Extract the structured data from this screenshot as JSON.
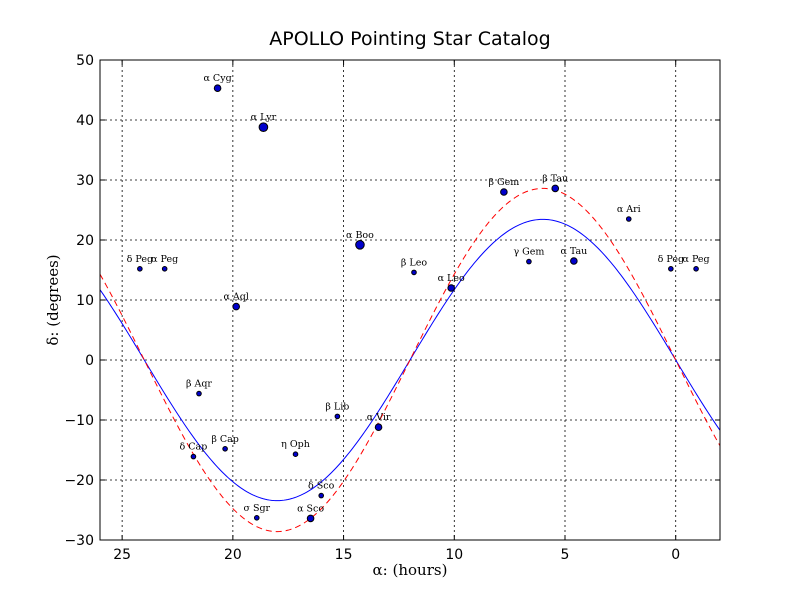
{
  "chart_data": {
    "type": "scatter",
    "title": "APOLLO Pointing Star Catalog",
    "xlabel": "α: (hours)",
    "ylabel": "δ: (degrees)",
    "xlim": [
      26,
      -2
    ],
    "ylim": [
      -30,
      50
    ],
    "x_ticks": [
      25,
      20,
      15,
      10,
      5,
      0
    ],
    "y_ticks": [
      50,
      40,
      30,
      20,
      10,
      0,
      -10,
      -20,
      -30
    ],
    "grid": true,
    "stars": [
      {
        "label": "α Cyg",
        "ra": 20.69,
        "dec": 45.3,
        "size": "medium"
      },
      {
        "label": "α Lyr",
        "ra": 18.62,
        "dec": 38.8,
        "size": "large"
      },
      {
        "label": "β Gem",
        "ra": 7.76,
        "dec": 28.0,
        "size": "medium"
      },
      {
        "label": "β Tau",
        "ra": 5.44,
        "dec": 28.6,
        "size": "medium"
      },
      {
        "label": "α Ari",
        "ra": 2.12,
        "dec": 23.5,
        "size": "small"
      },
      {
        "label": "α Boo",
        "ra": 14.26,
        "dec": 19.2,
        "size": "large"
      },
      {
        "label": "δ Peg",
        "ra": 24.2,
        "dec": 15.2,
        "size": "small"
      },
      {
        "label": "α Peg",
        "ra": 23.08,
        "dec": 15.2,
        "size": "small"
      },
      {
        "label": "β Leo",
        "ra": 11.82,
        "dec": 14.6,
        "size": "small"
      },
      {
        "label": "γ Gem",
        "ra": 6.63,
        "dec": 16.4,
        "size": "small"
      },
      {
        "label": "α Tau",
        "ra": 4.6,
        "dec": 16.5,
        "size": "medium"
      },
      {
        "label": "δ Peg",
        "ra": 0.22,
        "dec": 15.2,
        "size": "small"
      },
      {
        "label": "α Peg",
        "ra": -0.92,
        "dec": 15.2,
        "size": "small"
      },
      {
        "label": "α Leo",
        "ra": 10.14,
        "dec": 12.0,
        "size": "medium"
      },
      {
        "label": "α Aql",
        "ra": 19.85,
        "dec": 8.9,
        "size": "medium"
      },
      {
        "label": "β Aqr",
        "ra": 21.53,
        "dec": -5.6,
        "size": "small"
      },
      {
        "label": "β Lib",
        "ra": 15.28,
        "dec": -9.4,
        "size": "small"
      },
      {
        "label": "α Vir",
        "ra": 13.42,
        "dec": -11.2,
        "size": "medium"
      },
      {
        "label": "β Cap",
        "ra": 20.35,
        "dec": -14.8,
        "size": "small"
      },
      {
        "label": "δ Cap",
        "ra": 21.78,
        "dec": -16.1,
        "size": "small"
      },
      {
        "label": "η Oph",
        "ra": 17.17,
        "dec": -15.7,
        "size": "small"
      },
      {
        "label": "δ Sco",
        "ra": 16.01,
        "dec": -22.6,
        "size": "small"
      },
      {
        "label": "σ Sgr",
        "ra": 18.92,
        "dec": -26.3,
        "size": "small"
      },
      {
        "label": "α Sco",
        "ra": 16.49,
        "dec": -26.4,
        "size": "medium"
      }
    ],
    "series": [
      {
        "name": "ecliptic",
        "style": "solid",
        "color": "#0000ff",
        "amplitude_deg": 23.44
      },
      {
        "name": "limit",
        "style": "dashed",
        "color": "#ff0000",
        "amplitude_deg": 28.6
      }
    ]
  }
}
